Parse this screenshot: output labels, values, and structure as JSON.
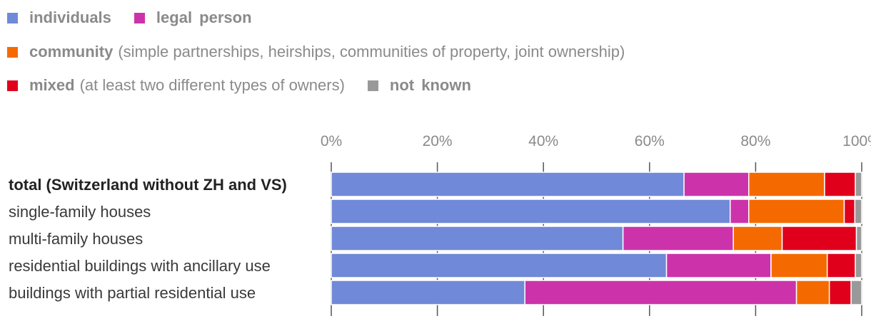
{
  "chart_data": {
    "type": "bar",
    "orientation": "horizontal",
    "stacked": true,
    "categories": [
      "total (Switzerland without ZH and VS)",
      "single-family houses",
      "multi-family houses",
      "residential buildings with ancillary use",
      "buildings with partial residential use"
    ],
    "bold_category": 0,
    "series": [
      {
        "key": "individuals",
        "name": "individuals",
        "description": "",
        "color": "#7089d8",
        "values": [
          66.5,
          75.2,
          55.0,
          63.2,
          36.5
        ]
      },
      {
        "key": "legal",
        "name": "legal  person",
        "description": "",
        "color": "#cc33aa",
        "values": [
          12.2,
          3.5,
          20.8,
          19.7,
          51.2
        ]
      },
      {
        "key": "community",
        "name": "community",
        "description": "(simple partnerships, heirships, communities of property, joint ownership)",
        "color": "#f56a00",
        "values": [
          14.3,
          18.0,
          9.2,
          10.6,
          6.2
        ]
      },
      {
        "key": "mixed",
        "name": "mixed",
        "description": "(at least two different types of owners)",
        "color": "#e0001b",
        "values": [
          5.8,
          2.0,
          14.0,
          5.3,
          4.1
        ]
      },
      {
        "key": "unknown",
        "name": "not  known",
        "description": "",
        "color": "#999999",
        "values": [
          1.2,
          1.3,
          1.0,
          1.2,
          2.0
        ]
      }
    ],
    "legend_rows": [
      [
        "individuals",
        "legal"
      ],
      [
        "community"
      ],
      [
        "mixed",
        "unknown"
      ]
    ],
    "x_ticks": [
      "0%",
      "20%",
      "40%",
      "60%",
      "80%",
      "100%"
    ],
    "xlim": [
      0,
      100
    ],
    "grid": true,
    "legend_position": "top-left"
  }
}
